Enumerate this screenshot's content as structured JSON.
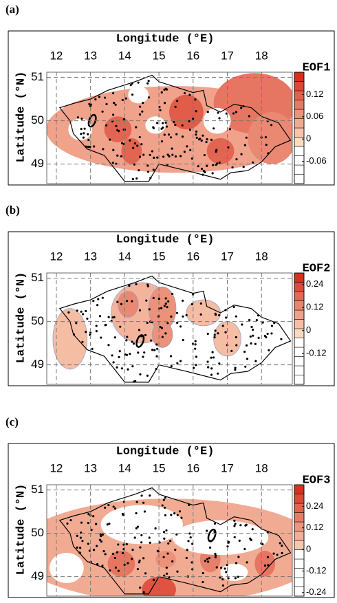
{
  "chart_data": [
    {
      "type": "map",
      "panel_label": "(a)",
      "xlabel": "Longitude (°E)",
      "ylabel": "Latitude (°N)",
      "xlim": [
        11.72,
        18.9
      ],
      "ylim": [
        48.55,
        51.12
      ],
      "xticks": [
        12,
        13,
        14,
        15,
        16,
        17,
        18
      ],
      "yticks": [
        49,
        50,
        51
      ],
      "grid": true,
      "colorbar": {
        "title": "EOF1",
        "lim": [
          -0.12,
          0.18
        ],
        "ticks": [
          0.12,
          0.06,
          0,
          -0.06
        ]
      }
    },
    {
      "type": "map",
      "panel_label": "(b)",
      "xlabel": "Longitude (°E)",
      "ylabel": "Latitude (°N)",
      "xlim": [
        11.72,
        18.9
      ],
      "ylim": [
        48.55,
        51.12
      ],
      "xticks": [
        12,
        13,
        14,
        15,
        16,
        17,
        18
      ],
      "yticks": [
        49,
        50,
        51
      ],
      "grid": true,
      "colorbar": {
        "title": "EOF2",
        "lim": [
          -0.28,
          0.3
        ],
        "ticks": [
          0.24,
          0.12,
          0,
          -0.12
        ]
      }
    },
    {
      "type": "map",
      "panel_label": "(c)",
      "xlabel": "Longitude (°E)",
      "ylabel": "Latitude (°N)",
      "xlim": [
        11.72,
        18.9
      ],
      "ylim": [
        48.55,
        51.12
      ],
      "xticks": [
        12,
        13,
        14,
        15,
        16,
        17,
        18
      ],
      "yticks": [
        49,
        50,
        51
      ],
      "grid": true,
      "colorbar": {
        "title": "EOF3",
        "lim": [
          -0.26,
          0.36
        ],
        "ticks": [
          0.24,
          0.12,
          0,
          -0.12,
          -0.24
        ]
      }
    }
  ]
}
